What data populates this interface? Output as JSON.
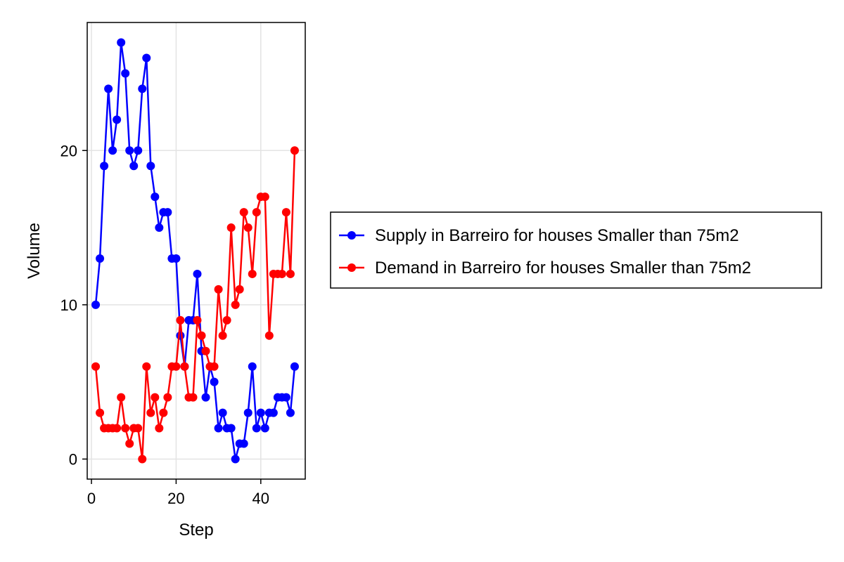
{
  "chart_data": {
    "type": "line",
    "title": "",
    "xlabel": "Step",
    "ylabel": "Volume",
    "xlim": [
      -1,
      50.5
    ],
    "ylim": [
      -1.3,
      28.3
    ],
    "xticks": [
      0,
      20,
      40
    ],
    "yticks": [
      0,
      10,
      20
    ],
    "xtick_labels": [
      "0",
      "20",
      "40"
    ],
    "ytick_labels": [
      "0",
      "10",
      "20"
    ],
    "grid": true,
    "legend_position": "right",
    "x": [
      1,
      2,
      3,
      4,
      5,
      6,
      7,
      8,
      9,
      10,
      11,
      12,
      13,
      14,
      15,
      16,
      17,
      18,
      19,
      20,
      21,
      22,
      23,
      24,
      25,
      26,
      27,
      28,
      29,
      30,
      31,
      32,
      33,
      34,
      35,
      36,
      37,
      38,
      39,
      40,
      41,
      42,
      43,
      44,
      45,
      46,
      47,
      48
    ],
    "series": [
      {
        "name": "Supply in Barreiro for houses Smaller than 75m2",
        "color": "#0000ff",
        "values": [
          10,
          13,
          19,
          24,
          20,
          22,
          27,
          25,
          20,
          19,
          20,
          24,
          26,
          19,
          17,
          15,
          16,
          16,
          13,
          13,
          8,
          6,
          9,
          9,
          12,
          7,
          4,
          6,
          5,
          2,
          3,
          2,
          2,
          0,
          1,
          1,
          3,
          6,
          2,
          3,
          2,
          3,
          3,
          4,
          4,
          4,
          3,
          6
        ]
      },
      {
        "name": "Demand in Barreiro for houses Smaller than 75m2",
        "color": "#ff0000",
        "values": [
          6,
          3,
          2,
          2,
          2,
          2,
          4,
          2,
          1,
          2,
          2,
          0,
          6,
          3,
          4,
          2,
          3,
          4,
          6,
          6,
          9,
          6,
          4,
          4,
          9,
          8,
          7,
          6,
          6,
          11,
          8,
          9,
          15,
          10,
          11,
          16,
          15,
          12,
          16,
          17,
          17,
          8,
          12,
          12,
          12,
          16,
          12,
          20
        ]
      }
    ]
  }
}
